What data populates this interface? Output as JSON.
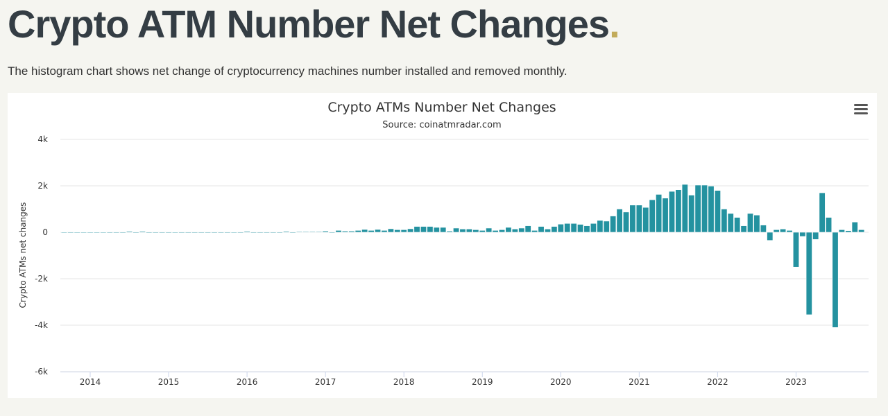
{
  "page": {
    "title": "Crypto ATM Number Net Changes",
    "title_dot": ".",
    "description": "The histogram chart shows net change of cryptocurrency machines number installed and removed monthly."
  },
  "chart_menu_icon": "hamburger-menu-icon",
  "chart_data": {
    "type": "bar",
    "title": "Crypto ATMs Number Net Changes",
    "subtitle": "Source: coinatmradar.com",
    "ylabel": "Crypto ATMs net changes",
    "xlabel": "",
    "ylim": [
      -6000,
      4000
    ],
    "yticks": [
      {
        "v": 4000,
        "label": "4k"
      },
      {
        "v": 2000,
        "label": "2k"
      },
      {
        "v": 0,
        "label": "0"
      },
      {
        "v": -2000,
        "label": "-2k"
      },
      {
        "v": -4000,
        "label": "-4k"
      },
      {
        "v": -6000,
        "label": "-6k"
      }
    ],
    "xticks": [
      "2014",
      "2015",
      "2016",
      "2017",
      "2018",
      "2019",
      "2020",
      "2021",
      "2022",
      "2023"
    ],
    "grid": true,
    "bar_color": "#2492a0",
    "first_month": "2013-09",
    "monthly_values_by_year": {
      "2013": [
        5,
        0,
        5,
        5
      ],
      "2014": [
        5,
        5,
        5,
        0,
        0,
        0,
        40,
        0,
        40,
        0,
        0,
        0
      ],
      "2015": [
        0,
        5,
        0,
        0,
        0,
        0,
        0,
        0,
        0,
        0,
        5,
        0
      ],
      "2016": [
        40,
        0,
        0,
        0,
        0,
        0,
        40,
        0,
        30,
        30,
        30,
        30
      ],
      "2017": [
        50,
        0,
        80,
        50,
        50,
        80,
        120,
        80,
        120,
        80,
        150,
        110
      ],
      "2018": [
        110,
        150,
        250,
        250,
        250,
        210,
        210,
        50,
        180,
        140,
        140,
        110
      ],
      "2019": [
        80,
        180,
        80,
        110,
        210,
        140,
        180,
        280,
        80,
        250,
        140,
        250
      ],
      "2020": [
        350,
        380,
        380,
        340,
        280,
        380,
        510,
        480,
        700,
        1000,
        870,
        1170
      ],
      "2021": [
        1170,
        1070,
        1400,
        1630,
        1470,
        1760,
        1830,
        2060,
        1600,
        2030,
        2030,
        1990
      ],
      "2022": [
        1800,
        1000,
        810,
        640,
        280,
        810,
        740,
        310,
        -350,
        110,
        140,
        80
      ],
      "2023": [
        -1500,
        -180,
        -3550,
        -310,
        1700,
        640,
        -4100,
        110,
        70,
        440,
        110
      ]
    }
  }
}
